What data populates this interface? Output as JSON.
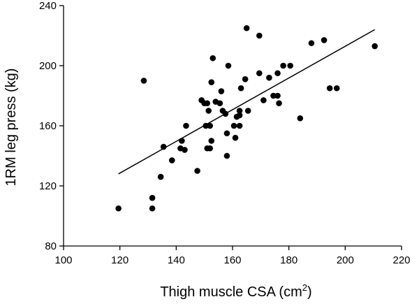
{
  "chart_data": {
    "type": "scatter",
    "title": "",
    "xlabel": "Thigh muscle CSA (cm",
    "xlabel_superscript": "2",
    "xlabel_suffix": ")",
    "ylabel": "1RM leg press (kg)",
    "xlim": [
      100,
      220
    ],
    "ylim": [
      80,
      240
    ],
    "xticks": [
      100,
      120,
      140,
      160,
      180,
      200,
      220
    ],
    "yticks": [
      80,
      120,
      160,
      200,
      240
    ],
    "grid": false,
    "legend": "none",
    "points": [
      {
        "x": 119.5,
        "y": 105
      },
      {
        "x": 128.5,
        "y": 190
      },
      {
        "x": 131.5,
        "y": 112
      },
      {
        "x": 131.5,
        "y": 105
      },
      {
        "x": 134.5,
        "y": 126
      },
      {
        "x": 135.5,
        "y": 146
      },
      {
        "x": 138.5,
        "y": 137
      },
      {
        "x": 141.5,
        "y": 145
      },
      {
        "x": 142,
        "y": 150
      },
      {
        "x": 143,
        "y": 144
      },
      {
        "x": 143.5,
        "y": 160
      },
      {
        "x": 147.5,
        "y": 130
      },
      {
        "x": 149,
        "y": 177
      },
      {
        "x": 150,
        "y": 175
      },
      {
        "x": 150.5,
        "y": 160
      },
      {
        "x": 151,
        "y": 145
      },
      {
        "x": 151,
        "y": 175
      },
      {
        "x": 151.5,
        "y": 170
      },
      {
        "x": 152,
        "y": 160
      },
      {
        "x": 152,
        "y": 145
      },
      {
        "x": 152.5,
        "y": 189
      },
      {
        "x": 152.5,
        "y": 150
      },
      {
        "x": 153,
        "y": 205
      },
      {
        "x": 154,
        "y": 176
      },
      {
        "x": 155.5,
        "y": 175
      },
      {
        "x": 156,
        "y": 183
      },
      {
        "x": 156.5,
        "y": 170
      },
      {
        "x": 157.5,
        "y": 168
      },
      {
        "x": 158,
        "y": 140
      },
      {
        "x": 158,
        "y": 155
      },
      {
        "x": 158.5,
        "y": 200
      },
      {
        "x": 160.5,
        "y": 160
      },
      {
        "x": 161,
        "y": 152
      },
      {
        "x": 161.5,
        "y": 166
      },
      {
        "x": 162.5,
        "y": 170
      },
      {
        "x": 162.5,
        "y": 167
      },
      {
        "x": 162.5,
        "y": 160
      },
      {
        "x": 163,
        "y": 185
      },
      {
        "x": 164.5,
        "y": 191
      },
      {
        "x": 165,
        "y": 225
      },
      {
        "x": 165.5,
        "y": 170
      },
      {
        "x": 169.5,
        "y": 220
      },
      {
        "x": 169.5,
        "y": 195
      },
      {
        "x": 171,
        "y": 177
      },
      {
        "x": 173,
        "y": 192
      },
      {
        "x": 174.5,
        "y": 180
      },
      {
        "x": 176,
        "y": 195
      },
      {
        "x": 176,
        "y": 180
      },
      {
        "x": 176.5,
        "y": 175
      },
      {
        "x": 178,
        "y": 200
      },
      {
        "x": 180.5,
        "y": 200
      },
      {
        "x": 184,
        "y": 165
      },
      {
        "x": 188,
        "y": 215
      },
      {
        "x": 192.5,
        "y": 217
      },
      {
        "x": 194.5,
        "y": 185
      },
      {
        "x": 197,
        "y": 185
      },
      {
        "x": 210.5,
        "y": 213
      }
    ],
    "trendline": {
      "x1": 119.5,
      "y1": 128,
      "x2": 210.5,
      "y2": 224
    }
  }
}
